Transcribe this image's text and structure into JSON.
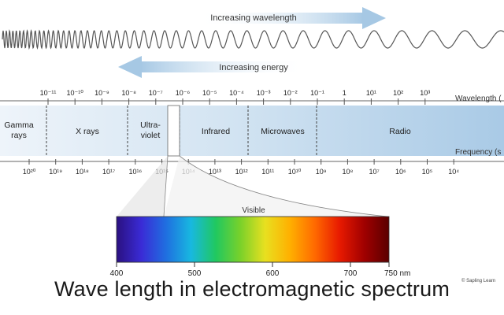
{
  "arrows": {
    "wavelength_label": "Increasing wavelength",
    "energy_label": "Increasing energy"
  },
  "axes": {
    "wavelength_label": "Wavelength (",
    "frequency_label": "Frequency (s",
    "wavelength_ticks": [
      "10⁻¹¹",
      "10⁻¹⁰",
      "10⁻⁹",
      "10⁻⁸",
      "10⁻⁷",
      "10⁻⁶",
      "10⁻⁵",
      "10⁻⁴",
      "10⁻³",
      "10⁻²",
      "10⁻¹",
      "1",
      "10¹",
      "10²",
      "10³"
    ],
    "frequency_ticks": [
      "10²⁰",
      "10¹⁹",
      "10¹⁸",
      "10¹⁷",
      "10¹⁶",
      "10¹⁵",
      "10¹⁴",
      "10¹³",
      "10¹²",
      "10¹¹",
      "10¹⁰",
      "10⁹",
      "10⁸",
      "10⁷",
      "10⁶",
      "10⁵",
      "10⁴"
    ]
  },
  "regions": [
    {
      "label": [
        "Gamma",
        "rays"
      ]
    },
    {
      "label": [
        "X rays"
      ]
    },
    {
      "label": [
        "Ultra-",
        "violet"
      ]
    },
    {
      "label": [
        "Infrared"
      ]
    },
    {
      "label": [
        "Microwaves"
      ]
    },
    {
      "label": [
        "Radio"
      ]
    }
  ],
  "visible": {
    "label": "Visible",
    "ticks": [
      "400",
      "500",
      "600",
      "700",
      "750 nm"
    ],
    "gradient_colors": [
      "#2a1080",
      "#3a2bd6",
      "#1f6fe0",
      "#18b8e0",
      "#20c860",
      "#7ad12a",
      "#e8e020",
      "#ffb000",
      "#ff6a00",
      "#e81a00",
      "#a00000",
      "#5a0000"
    ]
  },
  "colors": {
    "band_light": "#eef4fa",
    "band_dark": "#a9cae6",
    "arrow": "#a6c8e4"
  },
  "credit": "© Sapling Learn",
  "caption": "Wave length in electromagnetic spectrum"
}
